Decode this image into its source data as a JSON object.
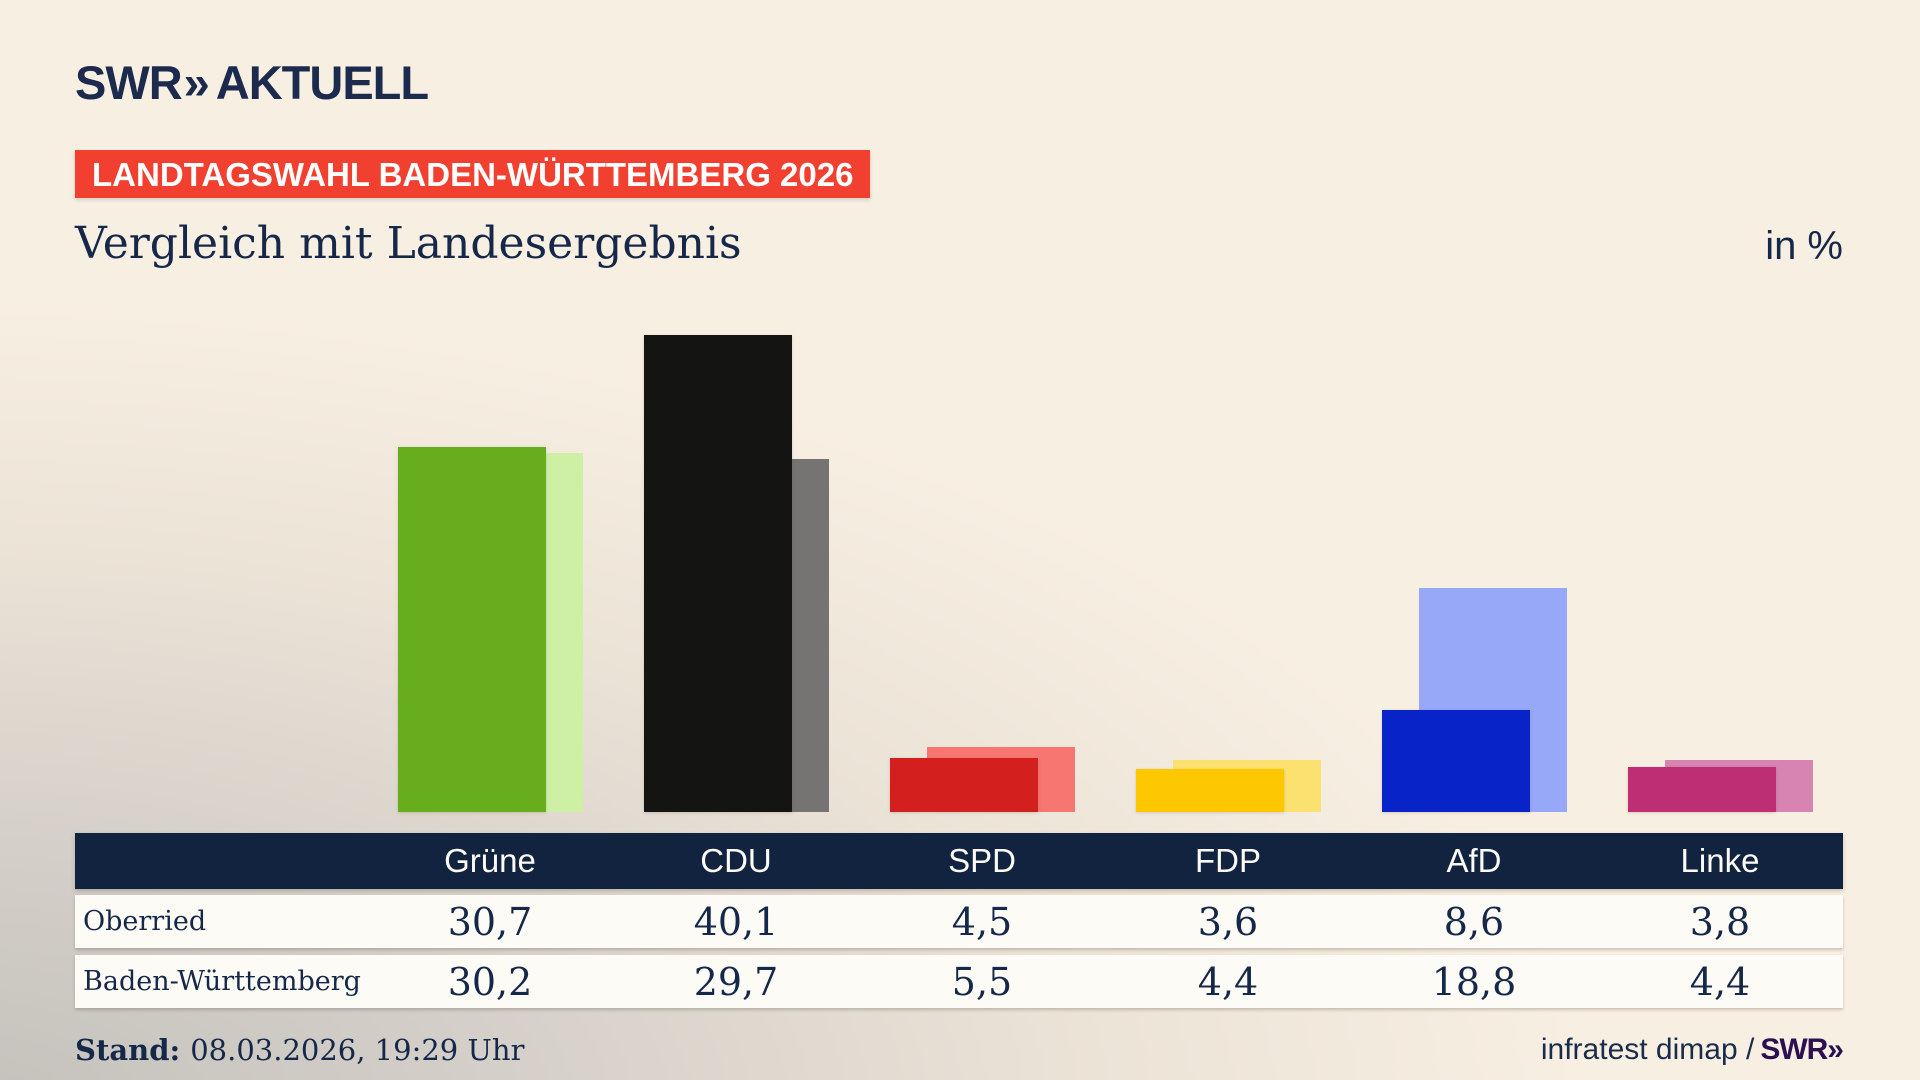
{
  "header": {
    "logo_brand": "SWR",
    "logo_chevrons": "»",
    "logo_product": "AKTUELL",
    "badge": "LANDTAGSWAHL BADEN-WÜRTTEMBERG 2026",
    "title": "Vergleich mit Landesergebnis",
    "unit": "in %"
  },
  "chart_data": {
    "type": "bar",
    "categories": [
      "Grüne",
      "CDU",
      "SPD",
      "FDP",
      "AfD",
      "Linke"
    ],
    "series": [
      {
        "name": "Oberried",
        "values": [
          30.7,
          40.1,
          4.5,
          3.6,
          8.6,
          3.8
        ],
        "colors": [
          "#67ad1e",
          "#141413",
          "#d3201e",
          "#fdc701",
          "#0823c8",
          "#bd2e74"
        ]
      },
      {
        "name": "Baden-Württemberg",
        "values": [
          30.2,
          29.7,
          5.5,
          4.4,
          18.8,
          4.4
        ],
        "colors": [
          "#cdf0a5",
          "#767472",
          "#f87672",
          "#fbe170",
          "#98a8f8",
          "#d884b2"
        ]
      }
    ],
    "title": "Vergleich mit Landesergebnis",
    "unit_label": "in %",
    "ylim": [
      0,
      42
    ],
    "grid": false,
    "legend_position": "table-rows",
    "value_format": "decimal-comma"
  },
  "footer": {
    "stand_label": "Stand:",
    "stand_value": "08.03.2026, 19:29 Uhr",
    "source": "infratest dimap /",
    "brand": "SWR»"
  },
  "colors": {
    "background_cream": "#f8efe3",
    "background_gray": "#c3c0bb",
    "navy_text": "#16284a",
    "badge_red": "#f1402f",
    "table_header_navy": "#12233f",
    "table_row_white": "#fdfbf6",
    "brand_purple": "#2d1052"
  }
}
